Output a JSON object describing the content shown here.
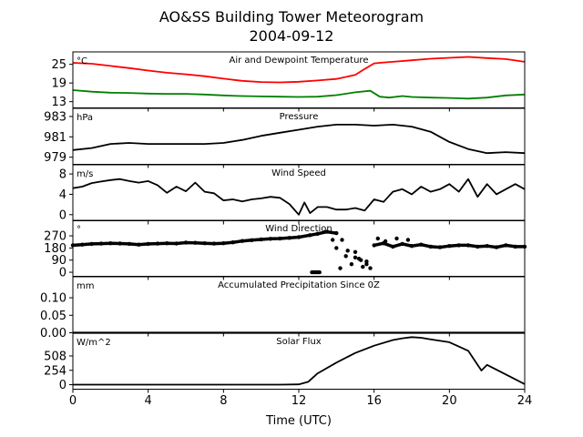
{
  "figure": {
    "title_line1": "AO&SS Building Tower Meteorogram",
    "title_line2": "2004-09-12",
    "xlabel": "Time (UTC)"
  },
  "chart_data": [
    {
      "id": "temp",
      "type": "line",
      "title": "Air and Dewpoint Temperature",
      "unit": "°C",
      "xlim": [
        0,
        24
      ],
      "ylim": [
        11,
        29
      ],
      "yticks": [
        13,
        19,
        25
      ],
      "series": [
        {
          "color": "#ff0000",
          "x": [
            0,
            1,
            2,
            3,
            4,
            5,
            6,
            7,
            8,
            9,
            10,
            11,
            12,
            13,
            14,
            15,
            15.5,
            16,
            16.5,
            17,
            18,
            19,
            20,
            21,
            22,
            23,
            24
          ],
          "y": [
            25.5,
            25.2,
            24.5,
            23.8,
            23.0,
            22.3,
            21.8,
            21.2,
            20.4,
            19.7,
            19.3,
            19.2,
            19.4,
            19.8,
            20.3,
            21.6,
            23.5,
            25.3,
            25.6,
            25.8,
            26.3,
            26.8,
            27.1,
            27.4,
            27.0,
            26.7,
            25.8
          ]
        },
        {
          "color": "#008000",
          "x": [
            0,
            1,
            2,
            3,
            4,
            5,
            6,
            7,
            8,
            9,
            10,
            11,
            12,
            13,
            14,
            15,
            15.8,
            16.3,
            16.8,
            17.5,
            18,
            19,
            20,
            21,
            22,
            23,
            24
          ],
          "y": [
            16.7,
            16.2,
            15.9,
            15.8,
            15.6,
            15.5,
            15.5,
            15.3,
            15.0,
            14.8,
            14.7,
            14.6,
            14.5,
            14.6,
            15.1,
            16.0,
            16.5,
            14.6,
            14.3,
            14.8,
            14.5,
            14.3,
            14.2,
            14.0,
            14.3,
            15.0,
            15.3
          ]
        }
      ]
    },
    {
      "id": "pres",
      "type": "line",
      "title": "Pressure",
      "unit": "hPa",
      "xlim": [
        0,
        24
      ],
      "ylim": [
        978.3,
        983.8
      ],
      "yticks": [
        979,
        981,
        983
      ],
      "series": [
        {
          "color": "#000000",
          "x": [
            0,
            1,
            2,
            3,
            4,
            5,
            6,
            7,
            8,
            9,
            10,
            11,
            12,
            13,
            14,
            15,
            16,
            17,
            18,
            19,
            20,
            21,
            22,
            23,
            24
          ],
          "y": [
            979.7,
            979.9,
            980.3,
            980.4,
            980.3,
            980.3,
            980.3,
            980.3,
            980.4,
            980.7,
            981.1,
            981.4,
            981.7,
            982.0,
            982.2,
            982.2,
            982.1,
            982.2,
            982.0,
            981.5,
            980.5,
            979.8,
            979.4,
            979.5,
            979.4
          ]
        }
      ]
    },
    {
      "id": "wspd",
      "type": "line",
      "title": "Wind Speed",
      "unit": "m/s",
      "xlim": [
        0,
        24
      ],
      "ylim": [
        -1.2,
        9.8
      ],
      "yticks": [
        0,
        4,
        8
      ],
      "series": [
        {
          "color": "#000000",
          "x": [
            0,
            0.5,
            1,
            1.5,
            2,
            2.5,
            3,
            3.5,
            4,
            4.5,
            5,
            5.5,
            6,
            6.5,
            7,
            7.5,
            8,
            8.5,
            9,
            9.5,
            10,
            10.5,
            11,
            11.5,
            12,
            12.3,
            12.6,
            13,
            13.5,
            14,
            14.5,
            15,
            15.5,
            16,
            16.5,
            17,
            17.5,
            18,
            18.5,
            19,
            19.5,
            20,
            20.5,
            21,
            21.5,
            22,
            22.5,
            23,
            23.5,
            24
          ],
          "y": [
            5.2,
            5.5,
            6.2,
            6.5,
            6.8,
            7.0,
            6.6,
            6.3,
            6.6,
            5.8,
            4.3,
            5.5,
            4.6,
            6.3,
            4.5,
            4.2,
            2.8,
            3.0,
            2.6,
            3.0,
            3.2,
            3.5,
            3.3,
            2.1,
            0.0,
            2.4,
            0.3,
            1.5,
            1.5,
            1.0,
            1.0,
            1.3,
            0.8,
            3.0,
            2.5,
            4.5,
            5.0,
            4.0,
            5.5,
            4.5,
            5.0,
            6.0,
            4.5,
            7.0,
            3.5,
            6.0,
            4.0,
            5.0,
            6.0,
            5.0
          ]
        }
      ]
    },
    {
      "id": "wdir",
      "type": "scatter",
      "title": "Wind Direction",
      "unit": "°",
      "xlim": [
        0,
        24
      ],
      "ylim": [
        -30,
        385
      ],
      "yticks": [
        0,
        90,
        180,
        270
      ],
      "series": [
        {
          "color": "#000000",
          "x": [
            0,
            0.5,
            1,
            1.5,
            2,
            2.5,
            3,
            3.5,
            4,
            4.5,
            5,
            5.5,
            6,
            6.5,
            7,
            7.5,
            8,
            8.5,
            9,
            9.5,
            10,
            10.5,
            11,
            11.5,
            12,
            12.6,
            13,
            13.5,
            14,
            14.3,
            14.6,
            15,
            15.3,
            15.6,
            16,
            16.5,
            17,
            17.5,
            18,
            18.5,
            19,
            19.5,
            20,
            20.5,
            21,
            21.5,
            22,
            22.5,
            23,
            23.5,
            24
          ],
          "y": [
            200,
            205,
            210,
            212,
            215,
            213,
            210,
            205,
            210,
            212,
            215,
            213,
            220,
            218,
            215,
            212,
            215,
            222,
            232,
            238,
            243,
            248,
            250,
            255,
            260,
            275,
            285,
            300,
            290,
            240,
            160,
            110,
            90,
            60,
            200,
            215,
            190,
            210,
            195,
            205,
            190,
            185,
            195,
            200,
            200,
            190,
            195,
            185,
            200,
            190,
            190
          ]
        },
        {
          "color": "#000000",
          "x": [
            12.7,
            12.8,
            12.9,
            13.0,
            13.1,
            13.8,
            14.0,
            14.2,
            14.5,
            14.8,
            15.0,
            15.2,
            15.4,
            15.6,
            15.8,
            16.2,
            16.6,
            17.2,
            17.8
          ],
          "y": [
            0,
            0,
            0,
            0,
            0,
            240,
            180,
            30,
            120,
            60,
            150,
            100,
            40,
            80,
            30,
            250,
            230,
            250,
            240
          ]
        }
      ]
    },
    {
      "id": "precip",
      "type": "line",
      "title": "Accumulated Precipitation Since 0Z",
      "unit": "mm",
      "xlim": [
        0,
        24
      ],
      "ylim": [
        0,
        0.16
      ],
      "yticks": [
        0.0,
        0.05,
        0.1
      ],
      "ytick_labels": [
        "0.00",
        "0.05",
        "0.10"
      ],
      "series": [
        {
          "color": "#000000",
          "x": [
            0,
            24
          ],
          "y": [
            0,
            0
          ]
        }
      ]
    },
    {
      "id": "solar",
      "type": "line",
      "title": "Solar Flux",
      "unit": "W/m^2",
      "xlim": [
        0,
        24
      ],
      "ylim": [
        -80,
        910
      ],
      "yticks": [
        0,
        254,
        508
      ],
      "series": [
        {
          "color": "#000000",
          "x": [
            0,
            11,
            12,
            12.5,
            13,
            14,
            15,
            16,
            17,
            17.5,
            18,
            18.5,
            19,
            20,
            21,
            21.5,
            21.7,
            22,
            23,
            24
          ],
          "y": [
            0,
            0,
            5,
            50,
            200,
            390,
            560,
            690,
            790,
            820,
            840,
            830,
            800,
            750,
            600,
            350,
            250,
            350,
            180,
            10
          ]
        }
      ]
    }
  ]
}
